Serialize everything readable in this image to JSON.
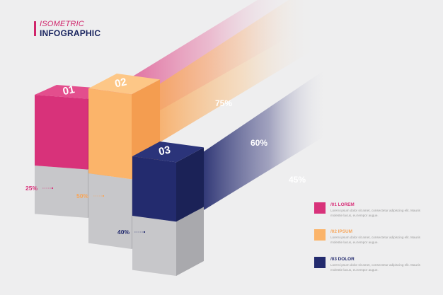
{
  "header": {
    "title_top": "ISOMETRIC",
    "title_bottom": "INFOGRAPHIC"
  },
  "colors": {
    "pink": "#d8327a",
    "orange": "#fbb46a",
    "navy": "#232b6e",
    "grey": "#c9c9cc"
  },
  "chart_data": {
    "type": "bar",
    "categories": [
      "01",
      "02",
      "03"
    ],
    "values": [
      25,
      50,
      40
    ],
    "ray_values": [
      75,
      60,
      45
    ],
    "value_labels": [
      "25%",
      "50%",
      "40%"
    ],
    "ray_labels": [
      "75%",
      "60%",
      "45%"
    ],
    "legend": [
      {
        "title": "/01 LOREM",
        "text": "Lorem ipsum dolor sit amet, consectetur adipiscing elit. Mauris molestie lacus, eu tempor augue.",
        "color": "#d8327a"
      },
      {
        "title": "/02 IPSUM",
        "text": "Lorem ipsum dolor sit amet, consectetur adipiscing elit. Mauris molestie lacus, eu tempor augue.",
        "color": "#fbb46a"
      },
      {
        "title": "/03 DOLOR",
        "text": "Lorem ipsum dolor sit amet, consectetur adipiscing elit. Mauris molestie lacus, eu tempor augue.",
        "color": "#232b6e"
      }
    ]
  }
}
